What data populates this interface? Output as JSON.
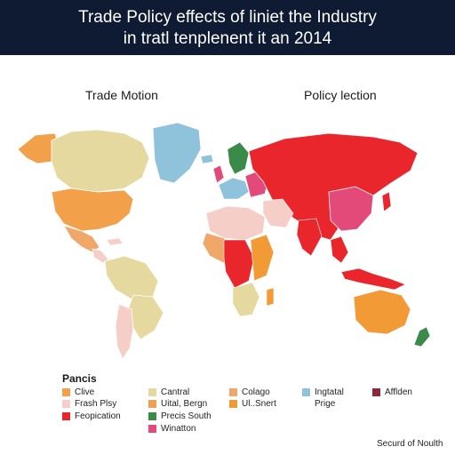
{
  "header": {
    "title_line1": "Trade Policy effects of liniet the Industry",
    "title_line2": "in tratl tenplenent it an 2014"
  },
  "map": {
    "left_label": "Trade Motion",
    "right_label": "Policy lection"
  },
  "legend": {
    "title": "Pancis",
    "items": [
      {
        "label": "Clive",
        "color": "#f2a04a"
      },
      {
        "label": "Frash Plsy",
        "color": "#f5cfc7"
      },
      {
        "label": "Feopication",
        "color": "#e8262c"
      },
      {
        "label": "Cantral",
        "color": "#e6d9a0"
      },
      {
        "label": "Uital, Bergn",
        "color": "#f0a050"
      },
      {
        "label": "Precis South",
        "color": "#3a8a4a"
      },
      {
        "label": "Winatton",
        "color": "#e34a7a"
      },
      {
        "label": "Colago",
        "color": "#f0a76a"
      },
      {
        "label": "Ul..Snert",
        "color": "#f29a35"
      },
      {
        "label": "Ingtatal",
        "color": "#8fc3dc"
      },
      {
        "label": "Prige",
        "color": ""
      },
      {
        "label": "Afflden",
        "color": "#8a2a3a"
      }
    ]
  },
  "footer": {
    "text": "Securd of Noulth"
  }
}
